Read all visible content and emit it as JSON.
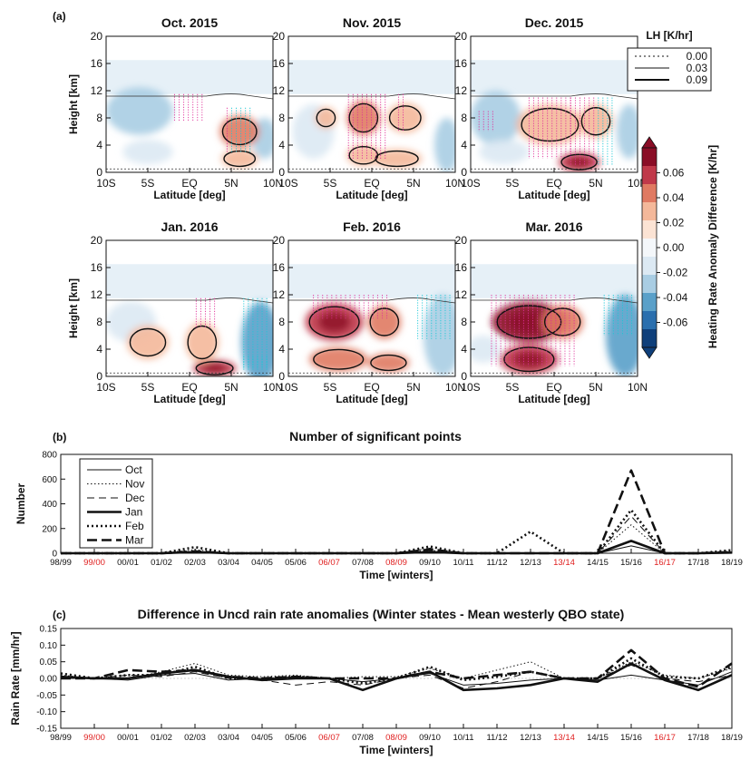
{
  "chart_data": [
    {
      "type": "heatmap",
      "panel_label": "(a)",
      "xlabel": "Latitude [deg]",
      "ylabel": "Height [km]",
      "xticks": [
        "10S",
        "5S",
        "EQ",
        "5N",
        "10N"
      ],
      "yticks": [
        "0",
        "4",
        "8",
        "12",
        "16",
        "20"
      ],
      "xlim": [
        -10,
        10
      ],
      "ylim": [
        0,
        20
      ],
      "colorbar": {
        "label": "Heating Rate Anomaly Difference [K/hr]",
        "ticks": [
          "0.06",
          "0.04",
          "0.02",
          "0.00",
          "-0.02",
          "-0.04",
          "-0.06"
        ],
        "colors": [
          "#8a0d26",
          "#c0394a",
          "#e07a62",
          "#f4b89a",
          "#fbe3d4",
          "#f4f7fa",
          "#dce9f3",
          "#a9cde3",
          "#5aa0c9",
          "#2a6fae",
          "#0f3f7a"
        ]
      },
      "contour_legend": {
        "title": "LH [K/hr]",
        "entries": [
          {
            "value": "0.00",
            "style": "dotted"
          },
          {
            "value": "0.03",
            "style": "thin"
          },
          {
            "value": "0.09",
            "style": "thick"
          }
        ]
      },
      "panels": [
        {
          "title": "Oct. 2015",
          "warm": [
            [
              6,
              6,
              2.4,
              2.4,
              0.5
            ],
            [
              6,
              2,
              2.2,
              1.4,
              0.35
            ]
          ],
          "cool": [
            [
              -6,
              9,
              4,
              3.5,
              0.28
            ],
            [
              -5,
              3,
              3,
              1.8,
              0.22
            ],
            [
              9,
              5,
              1.5,
              3,
              0.28
            ]
          ],
          "signif": [
            [
              -1.8,
              1.8,
              7.5,
              11.5
            ],
            [
              4.5,
              7.5,
              3,
              9.5
            ]
          ]
        },
        {
          "title": "Nov. 2015",
          "warm": [
            [
              -1,
              8,
              2,
              2.6,
              0.45
            ],
            [
              4,
              8,
              2.2,
              2.2,
              0.35
            ],
            [
              -5.5,
              8,
              1.3,
              1.6,
              0.3
            ],
            [
              3,
              2,
              3,
              1.4,
              0.35
            ],
            [
              -1,
              2.5,
              2,
              1.6,
              0.3
            ]
          ],
          "cool": [
            [
              -7,
              6,
              2.5,
              4,
              0.15
            ],
            [
              9,
              4,
              1.5,
              4,
              0.3
            ]
          ],
          "signif": [
            [
              -2.8,
              1.8,
              2,
              11.5
            ],
            [
              3.2,
              4.2,
              6,
              11.5
            ]
          ]
        },
        {
          "title": "Dec. 2015",
          "warm": [
            [
              -0.5,
              7,
              4,
              3,
              0.35
            ],
            [
              3,
              1.5,
              2.5,
              1.4,
              0.6
            ],
            [
              5,
              7.5,
              2,
              2.5,
              0.3
            ]
          ],
          "cool": [
            [
              -7,
              8,
              3,
              4,
              0.28
            ],
            [
              9,
              6,
              1.5,
              4,
              0.4
            ],
            [
              -6,
              3,
              3,
              1.8,
              0.2
            ]
          ],
          "signif": [
            [
              -3,
              2,
              2,
              11
            ],
            [
              2,
              7,
              1,
              11
            ],
            [
              -9,
              -7,
              6,
              9
            ]
          ]
        },
        {
          "title": "Jan. 2016",
          "warm": [
            [
              3,
              1.2,
              2.6,
              1.2,
              0.7
            ],
            [
              1.5,
              5,
              2,
              3,
              0.25
            ],
            [
              -5,
              5,
              2.5,
              2.5,
              0.1
            ]
          ],
          "cool": [
            [
              8.5,
              5,
              2.3,
              6,
              0.6
            ],
            [
              -7,
              8,
              3,
              3,
              0.15
            ]
          ],
          "signif": [
            [
              0.8,
              3,
              7,
              11.5
            ],
            [
              6.5,
              9.5,
              1,
              11.5
            ],
            [
              6.5,
              9.5,
              1,
              3
            ]
          ]
        },
        {
          "title": "Feb. 2016",
          "warm": [
            [
              -4.5,
              8,
              3.5,
              2.8,
              0.55
            ],
            [
              -4,
              2.5,
              3.5,
              1.8,
              0.4
            ],
            [
              1.5,
              8,
              2,
              2.5,
              0.4
            ],
            [
              2,
              2,
              2.5,
              1.4,
              0.45
            ]
          ],
          "cool": [
            [
              8.5,
              6,
              2.3,
              6,
              0.45
            ]
          ],
          "signif": [
            [
              -7,
              2,
              8.5,
              12
            ],
            [
              5.5,
              9.5,
              5.5,
              12
            ]
          ]
        },
        {
          "title": "Mar. 2016",
          "warm": [
            [
              -3,
              8,
              4.5,
              3,
              0.9
            ],
            [
              -3,
              2.5,
              3.5,
              2.2,
              0.7
            ],
            [
              1,
              8,
              2.5,
              2.5,
              0.5
            ]
          ],
          "cool": [
            [
              8.5,
              6,
              2.3,
              6,
              0.5
            ],
            [
              -8.5,
              4,
              2,
              2,
              0.2
            ]
          ],
          "signif": [
            [
              -7.5,
              2.5,
              1.5,
              12
            ],
            [
              6,
              9.5,
              6,
              12
            ]
          ]
        }
      ]
    },
    {
      "type": "line",
      "panel_label": "(b)",
      "title": "Number of significant points",
      "xlabel": "Time [winters]",
      "ylabel": "Number",
      "ylim": [
        0,
        800
      ],
      "yticks": [
        "0",
        "200",
        "400",
        "600",
        "800"
      ],
      "categories": [
        "98/99",
        "99/00",
        "00/01",
        "01/02",
        "02/03",
        "03/04",
        "04/05",
        "05/06",
        "06/07",
        "07/08",
        "08/09",
        "09/10",
        "10/11",
        "11/12",
        "12/13",
        "13/14",
        "14/15",
        "15/16",
        "16/17",
        "17/18",
        "18/19"
      ],
      "highlighted_categories": [
        "99/00",
        "06/07",
        "08/09",
        "13/14",
        "16/17"
      ],
      "highlight_color": "#e02020",
      "series": [
        {
          "name": "Oct",
          "style": "solid-thin",
          "values": [
            0,
            0,
            0,
            0,
            5,
            0,
            0,
            0,
            0,
            0,
            0,
            15,
            0,
            0,
            0,
            0,
            0,
            60,
            0,
            0,
            5
          ]
        },
        {
          "name": "Nov",
          "style": "dotted-thin",
          "values": [
            0,
            0,
            0,
            0,
            30,
            0,
            0,
            0,
            0,
            0,
            0,
            25,
            0,
            0,
            0,
            0,
            0,
            230,
            0,
            0,
            10
          ]
        },
        {
          "name": "Dec",
          "style": "dashed-thin",
          "values": [
            0,
            0,
            0,
            0,
            10,
            0,
            0,
            0,
            0,
            0,
            0,
            40,
            0,
            0,
            0,
            0,
            0,
            300,
            0,
            0,
            5
          ]
        },
        {
          "name": "Jan",
          "style": "solid-thick",
          "values": [
            0,
            0,
            0,
            0,
            10,
            0,
            0,
            0,
            0,
            0,
            0,
            10,
            0,
            0,
            0,
            0,
            0,
            100,
            0,
            0,
            5
          ]
        },
        {
          "name": "Feb",
          "style": "dotted-thick",
          "values": [
            0,
            0,
            0,
            0,
            50,
            0,
            0,
            0,
            0,
            0,
            0,
            55,
            0,
            0,
            175,
            0,
            0,
            350,
            0,
            0,
            25
          ]
        },
        {
          "name": "Mar",
          "style": "dashed-thick",
          "values": [
            0,
            0,
            0,
            0,
            15,
            0,
            0,
            0,
            0,
            0,
            0,
            30,
            0,
            0,
            0,
            0,
            0,
            670,
            0,
            0,
            10
          ]
        }
      ]
    },
    {
      "type": "line",
      "panel_label": "(c)",
      "title": "Difference in Uncd rain rate anomalies (Winter states - Mean westerly QBO state)",
      "xlabel": "Time [winters]",
      "ylabel": "Rain Rate [mm/hr]",
      "ylim": [
        -0.15,
        0.15
      ],
      "yticks": [
        "0.15",
        "0.10",
        "0.05",
        "0.00",
        "-0.05",
        "-0.10",
        "-0.15"
      ],
      "grid_y": [
        0.0
      ],
      "categories": [
        "98/99",
        "99/00",
        "00/01",
        "01/02",
        "02/03",
        "03/04",
        "04/05",
        "05/06",
        "06/07",
        "07/08",
        "08/09",
        "09/10",
        "10/11",
        "11/12",
        "12/13",
        "13/14",
        "14/15",
        "15/16",
        "16/17",
        "17/18",
        "18/19"
      ],
      "highlighted_categories": [
        "99/00",
        "06/07",
        "08/09",
        "13/14",
        "16/17"
      ],
      "highlight_color": "#e02020",
      "series": [
        {
          "name": "Oct",
          "style": "solid-thin",
          "values": [
            0.0,
            0.0,
            -0.005,
            0.01,
            0.015,
            -0.005,
            0.0,
            0.005,
            0.0,
            -0.01,
            0.0,
            0.015,
            -0.02,
            -0.015,
            -0.005,
            0.0,
            -0.005,
            0.01,
            -0.005,
            -0.02,
            0.02
          ]
        },
        {
          "name": "Nov",
          "style": "dotted-thin",
          "values": [
            0.01,
            0.0,
            0.0,
            0.02,
            0.045,
            0.01,
            0.005,
            0.01,
            0.0,
            0.005,
            0.005,
            0.03,
            0.0,
            0.025,
            0.05,
            0.0,
            0.0,
            0.05,
            0.01,
            0.0,
            0.03
          ]
        },
        {
          "name": "Dec",
          "style": "dashed-thin",
          "values": [
            0.0,
            0.0,
            0.01,
            0.005,
            0.02,
            0.0,
            -0.005,
            -0.02,
            -0.01,
            -0.02,
            0.0,
            0.01,
            -0.03,
            -0.01,
            0.02,
            0.0,
            0.0,
            0.04,
            0.0,
            -0.01,
            0.01
          ]
        },
        {
          "name": "Jan",
          "style": "solid-thick",
          "values": [
            0.005,
            0.0,
            0.0,
            0.015,
            0.025,
            0.005,
            -0.005,
            0.0,
            0.0,
            -0.035,
            0.0,
            0.02,
            -0.035,
            -0.03,
            -0.02,
            0.0,
            -0.01,
            0.045,
            -0.005,
            -0.035,
            0.01
          ]
        },
        {
          "name": "Feb",
          "style": "dotted-thick",
          "values": [
            0.015,
            0.0,
            0.01,
            0.01,
            0.035,
            0.0,
            0.0,
            0.005,
            0.0,
            -0.015,
            0.0,
            0.035,
            -0.005,
            0.005,
            0.02,
            0.0,
            0.0,
            0.06,
            0.005,
            0.0,
            0.035
          ]
        },
        {
          "name": "Mar",
          "style": "dashed-thick",
          "values": [
            0.0,
            0.0,
            0.025,
            0.02,
            0.025,
            0.005,
            0.0,
            0.005,
            0.0,
            0.0,
            0.0,
            0.02,
            0.0,
            0.01,
            0.02,
            0.0,
            0.0,
            0.085,
            0.0,
            -0.025,
            0.045
          ]
        }
      ]
    }
  ]
}
